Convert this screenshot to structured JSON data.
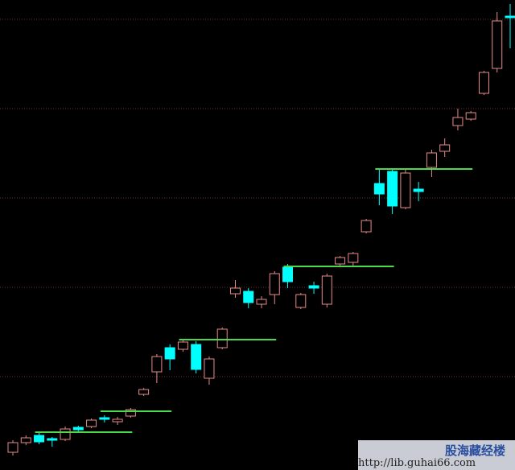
{
  "chart_data": {
    "type": "candlestick",
    "open": [
      22,
      34,
      43,
      39,
      38,
      53,
      54,
      65,
      60,
      67,
      94,
      122,
      152,
      150,
      156,
      114,
      152,
      219,
      222,
      206,
      218,
      252,
      202,
      229,
      206,
      256,
      258,
      296,
      356,
      371,
      326,
      349,
      376,
      396,
      428,
      436,
      468,
      499,
      564
    ],
    "high": [
      37,
      43,
      46,
      41,
      54,
      55,
      64,
      68,
      66,
      77,
      102,
      144,
      156,
      162,
      160,
      141,
      177,
      236,
      226,
      216,
      247,
      256,
      220,
      234,
      244,
      266,
      271,
      312,
      374,
      374,
      373,
      358,
      398,
      412,
      449,
      446,
      496,
      569,
      579
    ],
    "low": [
      18,
      31,
      32,
      29,
      36,
      47,
      52,
      59,
      56,
      65,
      92,
      108,
      124,
      147,
      120,
      106,
      150,
      214,
      201,
      201,
      206,
      226,
      200,
      219,
      202,
      254,
      254,
      294,
      329,
      318,
      324,
      334,
      364,
      389,
      422,
      434,
      466,
      494,
      524
    ],
    "close": [
      34,
      40,
      35,
      37,
      51,
      50,
      62,
      63,
      63,
      75,
      100,
      141,
      138,
      159,
      125,
      138,
      175,
      226,
      208,
      212,
      244,
      234,
      218,
      226,
      241,
      264,
      269,
      310,
      343,
      328,
      369,
      346,
      394,
      404,
      438,
      444,
      494,
      558,
      562
    ],
    "ylim": [
      0,
      584
    ],
    "grid_lines": [
      560,
      449,
      338,
      227,
      116
    ],
    "up_color": "#e88a8a",
    "down_color": "#00ffff",
    "grid_color": "#6a3030",
    "levels": [
      {
        "value": 47,
        "start": 2,
        "end": 9
      },
      {
        "value": 73,
        "start": 7,
        "end": 12
      },
      {
        "value": 162,
        "start": 13,
        "end": 20
      },
      {
        "value": 253,
        "start": 21,
        "end": 29
      },
      {
        "value": 374,
        "start": 28,
        "end": 35
      }
    ],
    "level_color": "#4cd94c"
  },
  "watermark": {
    "title": "股海藏经楼",
    "url": "http://lib.guhai66.com"
  }
}
